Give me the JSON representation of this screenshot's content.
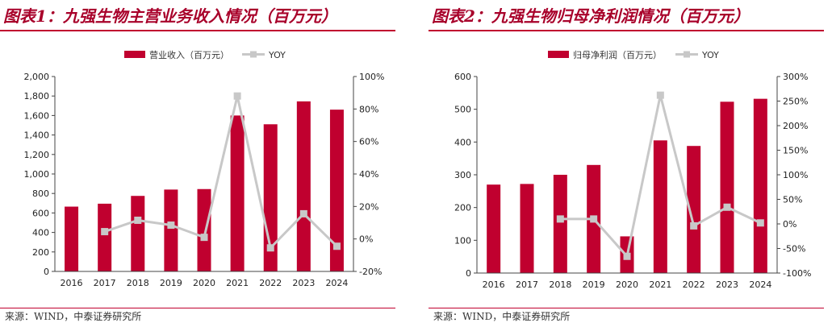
{
  "colors": {
    "bar": "#c0002f",
    "line": "#c8c8c8",
    "axis": "#444444",
    "title": "#a8002a"
  },
  "chart_data": [
    {
      "type": "bar",
      "title": "图表1：九强生物主营业务收入情况（百万元）",
      "source": "来源：WIND，中泰证券研究所",
      "categories": [
        "2016",
        "2017",
        "2018",
        "2019",
        "2020",
        "2021",
        "2022",
        "2023",
        "2024"
      ],
      "legend": {
        "placement": "top-center",
        "bar_label": "营业收入（百万元）",
        "line_label": "YOY"
      },
      "series": [
        {
          "name": "营业收入（百万元）",
          "type": "bar",
          "axis": "left",
          "values": [
            665,
            695,
            775,
            840,
            845,
            1600,
            1510,
            1745,
            1660
          ]
        },
        {
          "name": "YOY",
          "type": "line",
          "axis": "right",
          "values": [
            null,
            4.5,
            11.5,
            8.5,
            1,
            88,
            -5.5,
            15.5,
            -4.5
          ]
        }
      ],
      "y_left": {
        "min": 0,
        "max": 2000,
        "step": 200,
        "ticks": [
          "0",
          "200",
          "400",
          "600",
          "800",
          "1,000",
          "1,200",
          "1,400",
          "1,600",
          "1,800",
          "2,000"
        ]
      },
      "y_right": {
        "min": -20,
        "max": 100,
        "step": 20,
        "ticks": [
          "-20%",
          "0%",
          "20%",
          "40%",
          "60%",
          "80%",
          "100%"
        ]
      },
      "grid": false
    },
    {
      "type": "bar",
      "title": "图表2：九强生物归母净利润情况（百万元）",
      "source": "来源：WIND，中泰证券研究所",
      "categories": [
        "2016",
        "2017",
        "2018",
        "2019",
        "2020",
        "2021",
        "2022",
        "2023",
        "2024"
      ],
      "legend": {
        "placement": "top-center",
        "bar_label": "归母净利润（百万元）",
        "line_label": "YOY"
      },
      "series": [
        {
          "name": "归母净利润（百万元）",
          "type": "bar",
          "axis": "left",
          "values": [
            270,
            272,
            300,
            330,
            112,
            405,
            388,
            523,
            532
          ]
        },
        {
          "name": "YOY",
          "type": "line",
          "axis": "right",
          "values": [
            null,
            null,
            10,
            10,
            -66,
            262,
            -4,
            34,
            2
          ]
        }
      ],
      "y_left": {
        "min": 0,
        "max": 600,
        "step": 100,
        "ticks": [
          "0",
          "100",
          "200",
          "300",
          "400",
          "500",
          "600"
        ]
      },
      "y_right": {
        "min": -100,
        "max": 300,
        "step": 50,
        "ticks": [
          "-100%",
          "-50%",
          "0%",
          "50%",
          "100%",
          "150%",
          "200%",
          "250%",
          "300%"
        ]
      },
      "grid": false
    }
  ]
}
